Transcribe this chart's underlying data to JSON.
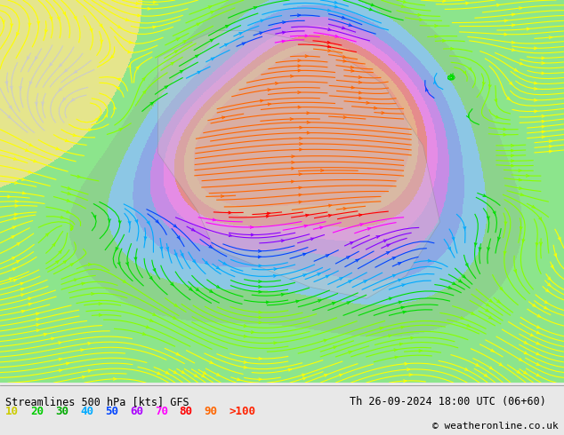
{
  "title_left": "Streamlines 500 hPa [kts] GFS",
  "title_right": "Th 26-09-2024 18:00 UTC (06+60)",
  "copyright": "© weatheronline.co.uk",
  "legend_values": [
    "10",
    "20",
    "30",
    "40",
    "50",
    "60",
    "70",
    "80",
    "90",
    ">100"
  ],
  "legend_colors": [
    "#ffff00",
    "#00ff00",
    "#00cc00",
    "#00aaff",
    "#0055ff",
    "#aa00ff",
    "#ff00ff",
    "#ff0000",
    "#ff6600",
    "#ff3300"
  ],
  "bg_color": "#e8e8e8",
  "map_bg": "#d0d0d0",
  "text_color": "#000000",
  "bottom_bar_color": "#f0f0f0",
  "figsize": [
    6.34,
    4.9
  ],
  "dpi": 100
}
